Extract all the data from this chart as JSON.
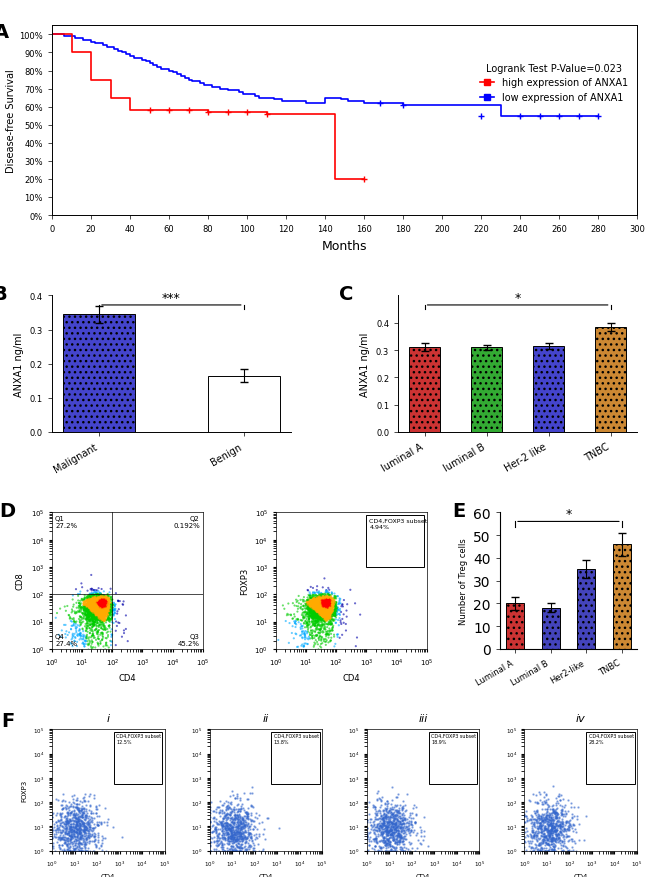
{
  "panel_A": {
    "title": "A",
    "xlabel": "Months",
    "ylabel": "Disease-free Survival",
    "xlim": [
      0,
      300
    ],
    "ylim": [
      0,
      1.05
    ],
    "yticks": [
      0.0,
      0.1,
      0.2,
      0.3,
      0.4,
      0.5,
      0.6,
      0.7,
      0.8,
      0.9,
      1.0
    ],
    "ytick_labels": [
      "0%",
      "10%",
      "20%",
      "30%",
      "40%",
      "50%",
      "60%",
      "70%",
      "80%",
      "90%",
      "100%"
    ],
    "xticks": [
      0,
      20,
      40,
      60,
      80,
      100,
      120,
      140,
      160,
      180,
      200,
      220,
      240,
      260,
      280,
      300
    ],
    "legend_text": "Logrank Test P-Value=0.023",
    "legend_high": "high expression of ANXA1",
    "legend_low": "low expression of ANXA1",
    "blue_x": [
      0,
      2,
      4,
      6,
      8,
      10,
      12,
      14,
      16,
      18,
      20,
      22,
      24,
      26,
      28,
      30,
      32,
      34,
      36,
      38,
      40,
      42,
      44,
      46,
      48,
      50,
      52,
      54,
      56,
      58,
      60,
      62,
      64,
      66,
      68,
      70,
      72,
      74,
      76,
      78,
      80,
      82,
      84,
      86,
      88,
      90,
      92,
      94,
      96,
      98,
      100,
      102,
      104,
      106,
      108,
      110,
      112,
      114,
      116,
      118,
      120,
      122,
      124,
      126,
      128,
      130,
      132,
      134,
      136,
      138,
      140,
      142,
      144,
      146,
      148,
      150,
      152,
      154,
      156,
      158,
      160,
      162,
      164,
      166,
      168,
      180,
      200,
      210,
      220,
      230,
      240,
      250,
      260,
      270,
      280
    ],
    "blue_y": [
      1.0,
      1.0,
      1.0,
      0.99,
      0.99,
      0.99,
      0.98,
      0.98,
      0.97,
      0.97,
      0.96,
      0.95,
      0.95,
      0.94,
      0.93,
      0.93,
      0.92,
      0.91,
      0.9,
      0.89,
      0.88,
      0.87,
      0.87,
      0.86,
      0.85,
      0.84,
      0.83,
      0.82,
      0.81,
      0.81,
      0.8,
      0.79,
      0.78,
      0.77,
      0.76,
      0.75,
      0.74,
      0.74,
      0.73,
      0.72,
      0.72,
      0.71,
      0.71,
      0.7,
      0.7,
      0.69,
      0.69,
      0.69,
      0.68,
      0.67,
      0.67,
      0.67,
      0.66,
      0.65,
      0.65,
      0.65,
      0.65,
      0.64,
      0.64,
      0.63,
      0.63,
      0.63,
      0.63,
      0.63,
      0.63,
      0.62,
      0.62,
      0.62,
      0.62,
      0.62,
      0.65,
      0.65,
      0.65,
      0.65,
      0.64,
      0.64,
      0.63,
      0.63,
      0.63,
      0.63,
      0.62,
      0.62,
      0.62,
      0.62,
      0.62,
      0.61,
      0.61,
      0.61,
      0.61,
      0.55,
      0.55,
      0.55,
      0.55,
      0.55,
      0.55
    ],
    "red_x": [
      0,
      10,
      20,
      30,
      40,
      50,
      60,
      70,
      80,
      90,
      100,
      110,
      120,
      130,
      140,
      145,
      150,
      160
    ],
    "red_y": [
      1.0,
      0.9,
      0.75,
      0.65,
      0.58,
      0.58,
      0.58,
      0.58,
      0.57,
      0.57,
      0.57,
      0.56,
      0.56,
      0.56,
      0.56,
      0.2,
      0.2,
      0.2
    ],
    "censor_blue_x": [
      168,
      180,
      220,
      240,
      250,
      260,
      270,
      280
    ],
    "censor_blue_y": [
      0.62,
      0.61,
      0.55,
      0.55,
      0.55,
      0.55,
      0.55,
      0.55
    ],
    "censor_red_x": [
      50,
      60,
      70,
      80,
      90,
      100,
      110,
      160
    ],
    "censor_red_y": [
      0.58,
      0.58,
      0.58,
      0.57,
      0.57,
      0.57,
      0.56,
      0.2
    ]
  },
  "panel_B": {
    "title": "B",
    "categories": [
      "Malignant",
      "Benign"
    ],
    "values": [
      0.345,
      0.165
    ],
    "errors": [
      0.025,
      0.02
    ],
    "colors": [
      "#4444cc",
      "#ffffff"
    ],
    "ylabel": "ANXA1 ng/ml",
    "ylim": [
      0.0,
      0.4
    ],
    "yticks": [
      0.0,
      0.1,
      0.2,
      0.3,
      0.4
    ],
    "sig_text": "***"
  },
  "panel_C": {
    "title": "C",
    "categories": [
      "luminal A",
      "luminal B",
      "Her-2 like",
      "TNBC"
    ],
    "values": [
      0.31,
      0.31,
      0.315,
      0.385
    ],
    "errors": [
      0.015,
      0.01,
      0.012,
      0.015
    ],
    "colors": [
      "#cc3333",
      "#33aa33",
      "#4444cc",
      "#cc8833"
    ],
    "ylabel": "ANXA1 ng/ml",
    "ylim": [
      0.0,
      0.5
    ],
    "yticks": [
      0.0,
      0.1,
      0.2,
      0.3,
      0.4
    ],
    "sig_text": "*"
  },
  "panel_D_left": {
    "title": "Q1\n27.2%",
    "q2": "Q2\n0.192%",
    "q3": "Q3\n45.2%",
    "q4": "Q4\n27.4%",
    "xlabel": "CD4",
    "ylabel": "CD8"
  },
  "panel_D_right": {
    "label": "CD4,FOXP3 subset\n4.94%",
    "xlabel": "CD4",
    "ylabel": "FOXP3"
  },
  "panel_E": {
    "title": "E",
    "categories": [
      "Luminal A",
      "Luminal B",
      "Her2-like",
      "TNBC"
    ],
    "values": [
      20,
      18,
      35,
      46
    ],
    "errors": [
      3,
      2,
      4,
      5
    ],
    "colors": [
      "#cc3333",
      "#4444cc",
      "#4444cc",
      "#cc8833"
    ],
    "ylabel": "Number of Treg cells",
    "ylim": [
      0,
      60
    ],
    "sig_text": "*"
  },
  "panel_F": {
    "title": "F",
    "subpanels": [
      {
        "label": "i",
        "subset_pct": "12.5%"
      },
      {
        "label": "ii",
        "subset_pct": "13.8%"
      },
      {
        "label": "iii",
        "subset_pct": "18.9%"
      },
      {
        "label": "iv",
        "subset_pct": "28.2%"
      }
    ],
    "xlabel": "CD4",
    "ylabel": "FOXP3",
    "annotation": "CD4,FOXP3 subset"
  }
}
